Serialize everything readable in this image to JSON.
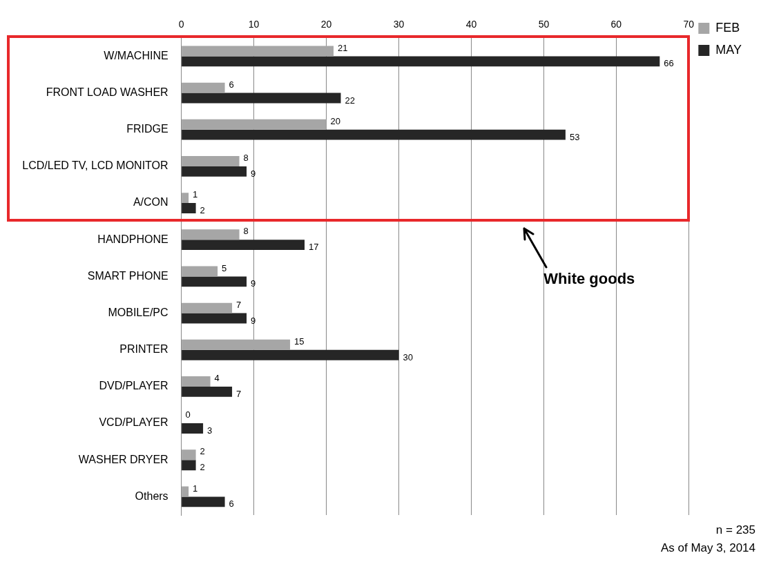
{
  "chart_data": {
    "type": "bar",
    "orientation": "horizontal",
    "categories": [
      "W/MACHINE",
      "FRONT LOAD WASHER",
      "FRIDGE",
      "LCD/LED TV, LCD MONITOR",
      "A/CON",
      "HANDPHONE",
      "SMART PHONE",
      "MOBILE/PC",
      "PRINTER",
      "DVD/PLAYER",
      "VCD/PLAYER",
      "WASHER DRYER",
      "Others"
    ],
    "series": [
      {
        "name": "FEB",
        "color": "#a6a6a6",
        "values": [
          21,
          6,
          20,
          8,
          1,
          8,
          5,
          7,
          15,
          4,
          0,
          2,
          1
        ]
      },
      {
        "name": "MAY",
        "color": "#262626",
        "values": [
          66,
          22,
          53,
          9,
          2,
          17,
          9,
          9,
          30,
          7,
          3,
          2,
          6
        ]
      }
    ],
    "xlim": [
      0,
      70
    ],
    "xticks": [
      0,
      10,
      20,
      30,
      40,
      50,
      60,
      70
    ],
    "grid": "x",
    "legend": "right",
    "data_labels": true,
    "annotations": [
      "White goods",
      "n = 235",
      "As of May 3, 2014"
    ]
  }
}
